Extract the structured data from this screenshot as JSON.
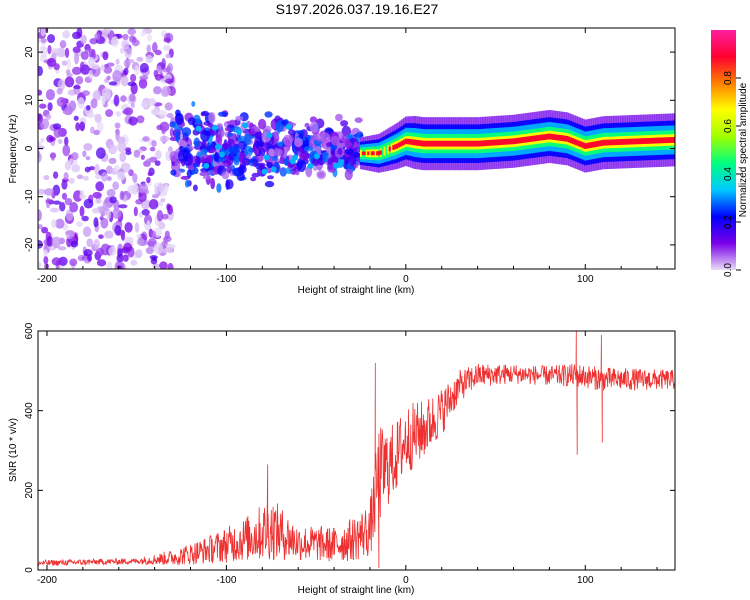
{
  "chart_data": [
    {
      "type": "heatmap",
      "title": "S197.2026.037.19.16.E27",
      "xlabel": "Height of straight line (km)",
      "ylabel": "Frequency (Hz)",
      "xlim": [
        -205,
        150
      ],
      "ylim": [
        -25,
        25
      ],
      "xticks": [
        -200,
        -100,
        0,
        100
      ],
      "yticks": [
        -20,
        -10,
        0,
        10,
        20
      ],
      "xtick_labels": [
        "-200",
        "-100",
        "0",
        "100"
      ],
      "ytick_labels": [
        "-20",
        "-10",
        "0",
        "10",
        "20"
      ],
      "colorbar": {
        "label": "Normalized spectral amplitude",
        "range": [
          0.0,
          1.0
        ],
        "ticks": [
          0.0,
          0.2,
          0.4,
          0.6,
          0.8
        ],
        "tick_labels": [
          "0.0",
          "0.2",
          "0.4",
          "0.6",
          "0.8"
        ],
        "colormap": [
          "#e8ddf8",
          "#7a00e8",
          "#0000ff",
          "#00c8ff",
          "#00ff80",
          "#a0ff00",
          "#ffff00",
          "#ff8000",
          "#ff0030",
          "#ff20a0"
        ]
      },
      "description_series": [
        {
          "name": "diffuse scatter",
          "x_range": [
            -205,
            -130
          ],
          "freq_range": [
            -25,
            25
          ],
          "amplitude": [
            0.0,
            0.15
          ]
        },
        {
          "name": "clustered energy",
          "x_range": [
            -130,
            -25
          ],
          "freq_range": [
            -8,
            7
          ],
          "amplitude": [
            0.05,
            0.3
          ]
        },
        {
          "name": "narrow band",
          "x_range": [
            -25,
            150
          ],
          "center_freq": [
            {
              "x": -25,
              "f": -1
            },
            {
              "x": -15,
              "f": -1
            },
            {
              "x": -5,
              "f": 0.5
            },
            {
              "x": 0,
              "f": 1.5
            },
            {
              "x": 10,
              "f": 1
            },
            {
              "x": 40,
              "f": 1
            },
            {
              "x": 60,
              "f": 1.5
            },
            {
              "x": 80,
              "f": 2.5
            },
            {
              "x": 90,
              "f": 2
            },
            {
              "x": 100,
              "f": 0.5
            },
            {
              "x": 110,
              "f": 1.2
            },
            {
              "x": 150,
              "f": 1.8
            }
          ],
          "amplitude": [
            0.4,
            1.0
          ]
        }
      ]
    },
    {
      "type": "line",
      "title": "",
      "xlabel": "Height of straight line (km)",
      "ylabel": "SNR (10 * v/v)",
      "xlim": [
        -205,
        150
      ],
      "ylim": [
        0,
        600
      ],
      "xticks": [
        -200,
        -100,
        0,
        100
      ],
      "yticks": [
        0,
        200,
        400,
        600
      ],
      "xtick_labels": [
        "-200",
        "-100",
        "0",
        "100"
      ],
      "ytick_labels": [
        "0",
        "200",
        "400",
        "600"
      ],
      "series": [
        {
          "name": "SNR",
          "color": "#ee3030",
          "envelope": [
            {
              "x": -205,
              "base": 15,
              "spread": 15
            },
            {
              "x": -150,
              "base": 20,
              "spread": 15
            },
            {
              "x": -130,
              "base": 25,
              "spread": 40
            },
            {
              "x": -110,
              "base": 40,
              "spread": 70
            },
            {
              "x": -90,
              "base": 60,
              "spread": 110
            },
            {
              "x": -75,
              "base": 80,
              "spread": 160
            },
            {
              "x": -60,
              "base": 55,
              "spread": 90
            },
            {
              "x": -40,
              "base": 50,
              "spread": 90
            },
            {
              "x": -30,
              "base": 60,
              "spread": 110
            },
            {
              "x": -20,
              "base": 80,
              "spread": 140
            },
            {
              "x": -15,
              "base": 200,
              "spread": 250
            },
            {
              "x": -10,
              "base": 230,
              "spread": 200
            },
            {
              "x": -5,
              "base": 260,
              "spread": 180
            },
            {
              "x": 0,
              "base": 300,
              "spread": 180
            },
            {
              "x": 10,
              "base": 330,
              "spread": 150
            },
            {
              "x": 20,
              "base": 380,
              "spread": 120
            },
            {
              "x": 30,
              "base": 450,
              "spread": 80
            },
            {
              "x": 40,
              "base": 480,
              "spread": 60
            },
            {
              "x": 60,
              "base": 485,
              "spread": 50
            },
            {
              "x": 80,
              "base": 480,
              "spread": 50
            },
            {
              "x": 95,
              "base": 480,
              "spread": 60
            },
            {
              "x": 110,
              "base": 470,
              "spread": 60
            },
            {
              "x": 130,
              "base": 470,
              "spread": 55
            },
            {
              "x": 150,
              "base": 470,
              "spread": 50
            }
          ],
          "spikes": [
            {
              "x": -17,
              "y": 520
            },
            {
              "x": -15,
              "y": 5
            },
            {
              "x": 95,
              "y": 600
            },
            {
              "x": 95.5,
              "y": 290
            },
            {
              "x": 109,
              "y": 590
            },
            {
              "x": 109.5,
              "y": 320
            },
            {
              "x": -77,
              "y": 265
            }
          ]
        }
      ]
    }
  ]
}
